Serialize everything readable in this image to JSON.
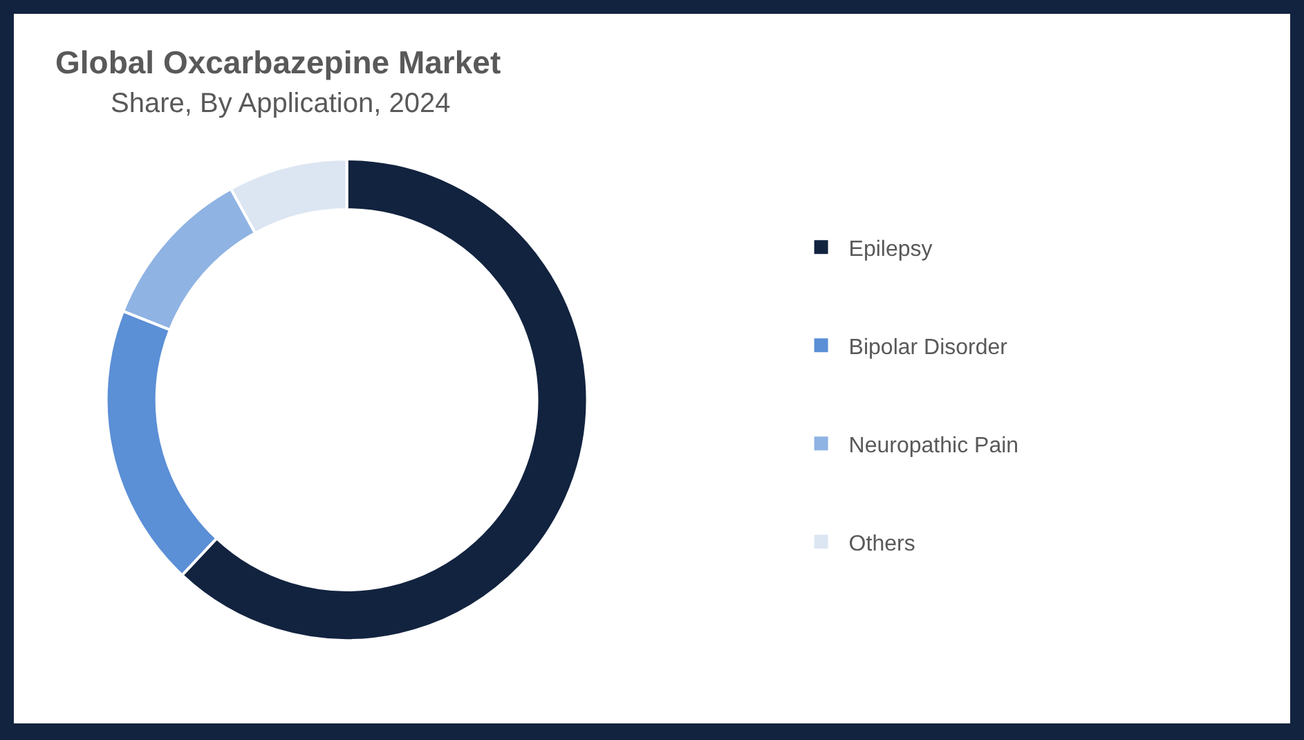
{
  "chart_data": {
    "type": "donut",
    "title": "Global Oxcarbazepine Market",
    "subtitle": "Share, By Application, 2024",
    "categories": [
      "Epilepsy",
      "Bipolar Disorder",
      "Neuropathic Pain",
      "Others"
    ],
    "values": [
      62,
      19,
      11,
      8
    ],
    "colors": [
      "#12233f",
      "#5b8fd6",
      "#8fb3e3",
      "#dce6f2"
    ],
    "legend": "right"
  }
}
